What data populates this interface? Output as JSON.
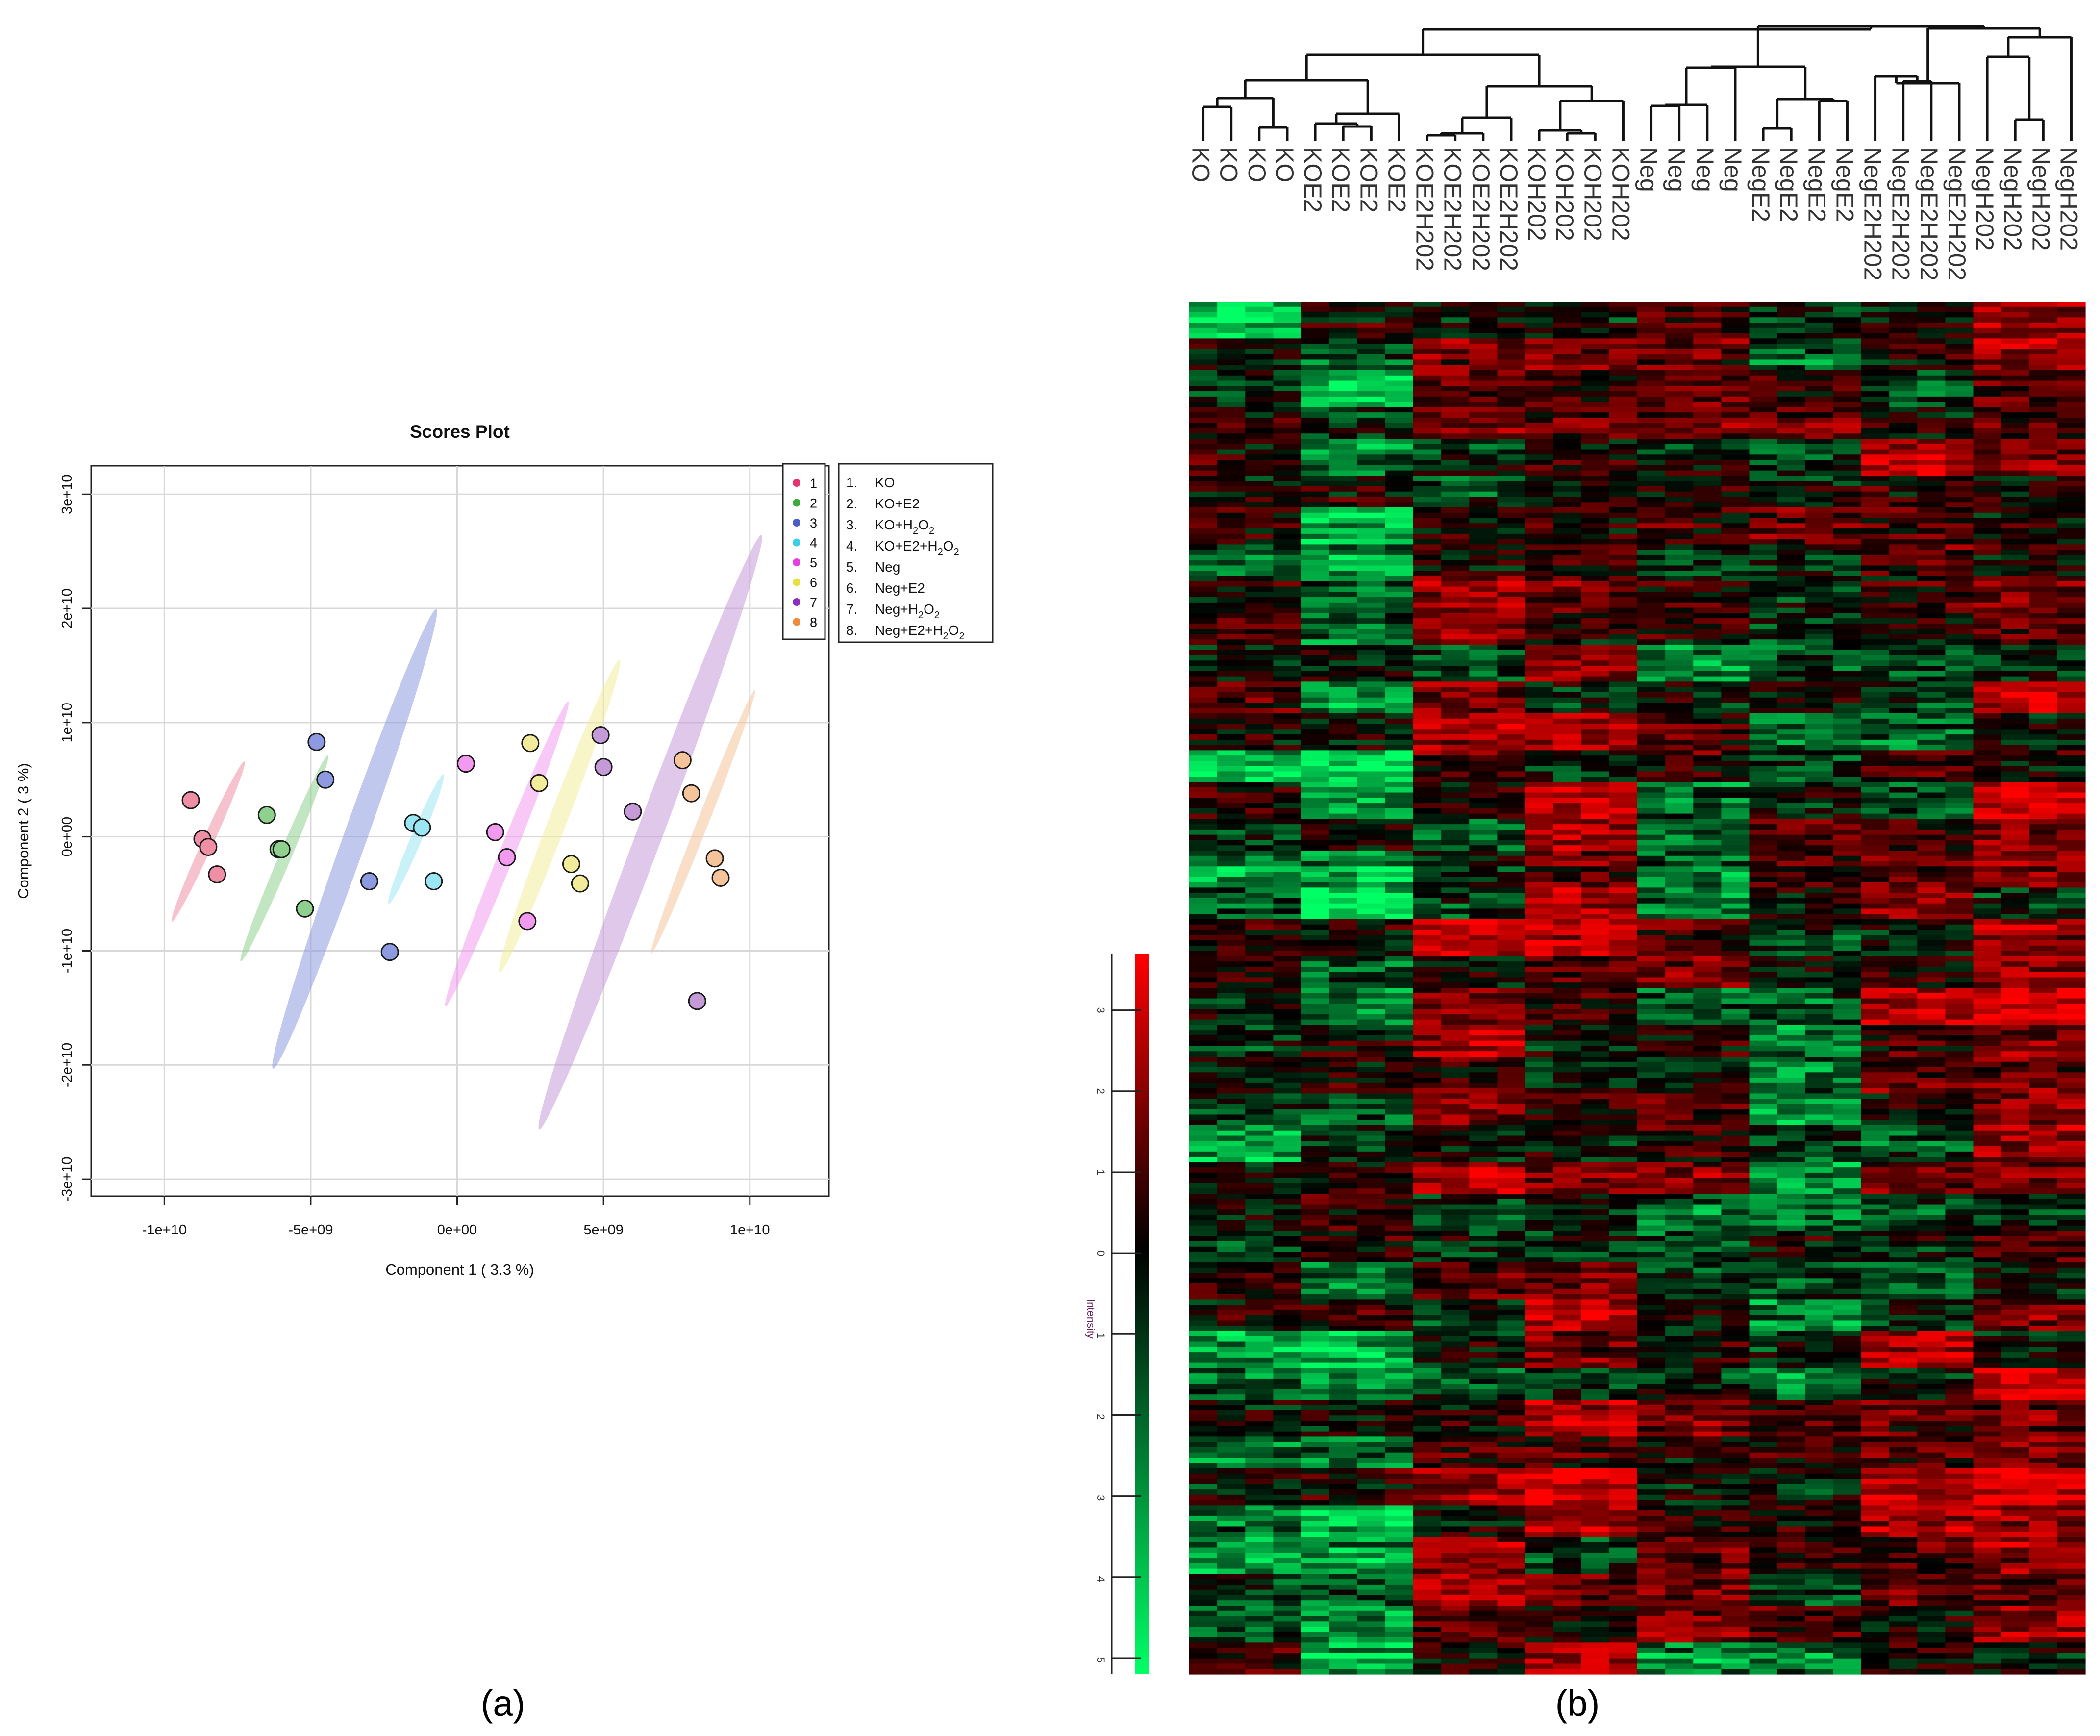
{
  "chart_data": [
    {
      "type": "scatter",
      "panel_label": "(a)",
      "title": "Scores Plot",
      "xlabel": "Component 1 ( 3.3 %)",
      "ylabel": "Component 2 ( 3 %)",
      "xlim": [
        -12500000000.0,
        12700000000.0
      ],
      "ylim": [
        -31500000000.0,
        32500000000.0
      ],
      "grid": true,
      "x_ticks": [
        -10000000000.0,
        -5000000000.0,
        0,
        5000000000.0,
        10000000000.0
      ],
      "x_tick_labels": [
        "-1e+10",
        "-5e+09",
        "0e+00",
        "5e+09",
        "1e+10"
      ],
      "y_ticks": [
        30000000000.0,
        20000000000.0,
        10000000000.0,
        0,
        -10000000000.0,
        -20000000000.0,
        -30000000000.0
      ],
      "y_tick_labels": [
        "3e+10",
        "2e+10",
        "1e+10",
        "0e+00",
        "-1e+10",
        "-2e+10",
        "-3e+10"
      ],
      "legend_position": "top-right",
      "groups": [
        {
          "key": "1",
          "name": "KO",
          "color": "#e8326e",
          "fill": "#ee8fa6",
          "ellipse": {
            "cx": -8500000000.0,
            "cy": -400000000.0,
            "half_len": 7800000000.0,
            "angle_deg": 64.5,
            "half_width": 220000000.0
          },
          "points": [
            [
              -9100000000.0,
              3200000000.0
            ],
            [
              -8700000000.0,
              -200000000.0
            ],
            [
              -8500000000.0,
              -900000000.0
            ],
            [
              -8200000000.0,
              -3300000000.0
            ]
          ]
        },
        {
          "key": "2",
          "name": "KO+E2",
          "color": "#3caa3c",
          "fill": "#8fd08f",
          "ellipse": {
            "cx": -5900000000.0,
            "cy": -1900000000.0,
            "half_len": 9900000000.0,
            "angle_deg": 66,
            "half_width": 240000000.0
          },
          "points": [
            [
              -6500000000.0,
              1900000000.0
            ],
            [
              -6100000000.0,
              -1100000000.0
            ],
            [
              -6000000000.0,
              -1100000000.0
            ],
            [
              -5200000000.0,
              -6300000000.0
            ]
          ]
        },
        {
          "key": "3",
          "name": "KO+H2O2",
          "color": "#4c5fc8",
          "fill": "#8e9ae0",
          "ellipse": {
            "cx": -3500000000.0,
            "cy": -200000000.0,
            "half_len": 21500000000.0,
            "angle_deg": 69.5,
            "half_width": 450000000.0
          },
          "points": [
            [
              -4800000000.0,
              8300000000.0
            ],
            [
              -4500000000.0,
              5000000000.0
            ],
            [
              -3000000000.0,
              -3900000000.0
            ],
            [
              -2300000000.0,
              -10100000000.0
            ]
          ]
        },
        {
          "key": "4",
          "name": "KO+E2+H2O2",
          "color": "#3cd0e8",
          "fill": "#9ae6f2",
          "ellipse": {
            "cx": -1400000000.0,
            "cy": -200000000.0,
            "half_len": 6200000000.0,
            "angle_deg": 66,
            "half_width": 220000000.0
          },
          "points": [
            [
              -1500000000.0,
              1200000000.0
            ],
            [
              -1200000000.0,
              800000000.0
            ],
            [
              -800000000.0,
              -3900000000.0
            ]
          ]
        },
        {
          "key": "5",
          "name": "Neg",
          "color": "#e840e0",
          "fill": "#f29af0",
          "ellipse": {
            "cx": 1700000000.0,
            "cy": -1500000000.0,
            "half_len": 14500000000.0,
            "angle_deg": 67,
            "half_width": 300000000.0
          },
          "points": [
            [
              300000000.0,
              6400000000.0
            ],
            [
              1300000000.0,
              400000000.0
            ],
            [
              1700000000.0,
              -1800000000.0
            ],
            [
              2400000000.0,
              -7400000000.0
            ]
          ]
        },
        {
          "key": "6",
          "name": "Neg+E2",
          "color": "#e8e040",
          "fill": "#f2ec9a",
          "ellipse": {
            "cx": 3500000000.0,
            "cy": 1800000000.0,
            "half_len": 14800000000.0,
            "angle_deg": 68,
            "half_width": 350000000.0
          },
          "points": [
            [
              2500000000.0,
              8200000000.0
            ],
            [
              2800000000.0,
              4700000000.0
            ],
            [
              3900000000.0,
              -2400000000.0
            ],
            [
              4200000000.0,
              -4100000000.0
            ]
          ]
        },
        {
          "key": "7",
          "name": "Neg+H2O2",
          "color": "#8c2ec0",
          "fill": "#c49ad8",
          "ellipse": {
            "cx": 6600000000.0,
            "cy": 400000000.0,
            "half_len": 28000000000.0,
            "angle_deg": 68.5,
            "half_width": 500000000.0
          },
          "points": [
            [
              4900000000.0,
              8900000000.0
            ],
            [
              5000000000.0,
              6100000000.0
            ],
            [
              6000000000.0,
              2200000000.0
            ],
            [
              8200000000.0,
              -14400000000.0
            ]
          ]
        },
        {
          "key": "8",
          "name": "Neg+E2+H2O2",
          "color": "#f08c40",
          "fill": "#f6c49a",
          "ellipse": {
            "cx": 8400000000.0,
            "cy": 1300000000.0,
            "half_len": 12500000000.0,
            "angle_deg": 67.5,
            "half_width": 220000000.0
          },
          "points": [
            [
              7700000000.0,
              6700000000.0
            ],
            [
              8000000000.0,
              3800000000.0
            ],
            [
              8800000000.0,
              -1900000000.0
            ],
            [
              9000000000.0,
              -3600000000.0
            ]
          ]
        }
      ],
      "legend_keys": [
        "1",
        "2",
        "3",
        "4",
        "5",
        "6",
        "7",
        "8"
      ],
      "legend_entries": [
        {
          "num": "1.",
          "text": "KO",
          "sub": "",
          "after": "",
          "sub2": ""
        },
        {
          "num": "2.",
          "text": "KO+E2",
          "sub": "",
          "after": "",
          "sub2": ""
        },
        {
          "num": "3.",
          "text": "KO+H",
          "sub": "2",
          "after": "O",
          "sub2": "2"
        },
        {
          "num": "4.",
          "text": "KO+E2+H",
          "sub": "2",
          "after": "O",
          "sub2": "2"
        },
        {
          "num": "5.",
          "text": "Neg",
          "sub": "",
          "after": "",
          "sub2": ""
        },
        {
          "num": "6.",
          "text": "Neg+E2",
          "sub": "",
          "after": "",
          "sub2": ""
        },
        {
          "num": "7.",
          "text": "Neg+H",
          "sub": "2",
          "after": "O",
          "sub2": "2"
        },
        {
          "num": "8.",
          "text": "Neg+E2+H",
          "sub": "2",
          "after": "O",
          "sub2": "2"
        }
      ]
    },
    {
      "type": "heatmap",
      "panel_label": "(b)",
      "columns": [
        "KO",
        "KO",
        "KO",
        "KO",
        "KOE2",
        "KOE2",
        "KOE2",
        "KOE2",
        "KOE2H202",
        "KOE2H202",
        "KOE2H202",
        "KOE2H202",
        "KOH202",
        "KOH202",
        "KOH202",
        "KOH202",
        "Neg",
        "Neg",
        "Neg",
        "Neg",
        "NegE2",
        "NegE2",
        "NegE2",
        "NegE2",
        "NegE2H202",
        "NegE2H202",
        "NegE2H202",
        "NegE2H202",
        "NegH202",
        "NegH202",
        "NegH202",
        "NegH202"
      ],
      "colorbar": {
        "title": "Intensity",
        "ticks": [
          3,
          2,
          1,
          0,
          -1,
          -2,
          -3,
          -4,
          -5
        ],
        "tick_labels": [
          "3",
          "2",
          "1",
          "0",
          "-1",
          "-2",
          "-3",
          "-4",
          "-5"
        ],
        "range": [
          -5.2,
          3.7
        ],
        "high_color": "#ff0000",
        "mid_color": "#000000",
        "low_color": "#00ff66"
      },
      "rows": 260,
      "column_group_means": [
        -0.6,
        -0.7,
        0.5,
        0.6,
        0.0,
        -0.2,
        0.4,
        0.8
      ]
    }
  ]
}
